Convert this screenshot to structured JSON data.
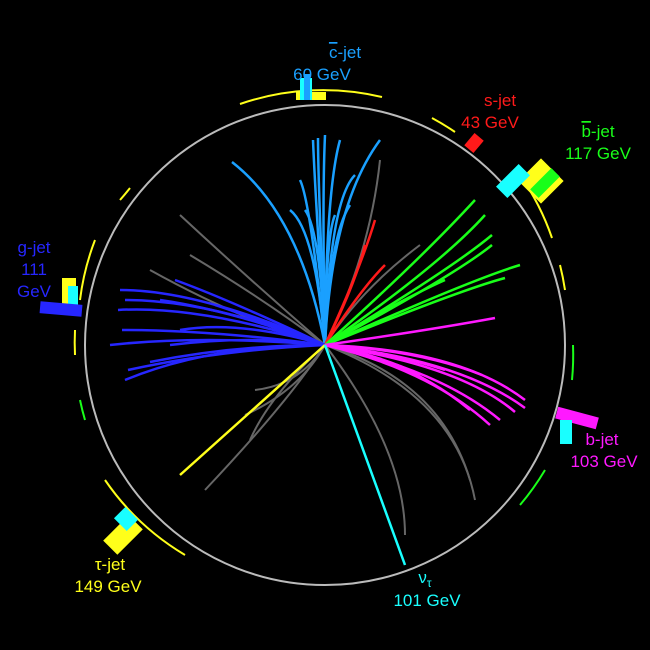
{
  "event": {
    "colors": {
      "charm": "#1aa0ff",
      "strange": "#ff1a1a",
      "bottom_bar": "#19ff19",
      "gluon": "#2626ff",
      "tau": "#ffff1a",
      "bottom": "#ff19ff",
      "neutrino": "#19ffff",
      "background_tracks": "#666666",
      "detector": "#bbbbbb"
    },
    "jets": [
      {
        "id": "cbar",
        "quark_letter": "c",
        "label_suffix": "-jet",
        "energy": "60 GeV",
        "color_key": "charm"
      },
      {
        "id": "s",
        "label": "s-jet",
        "energy": "43 GeV",
        "color_key": "strange"
      },
      {
        "id": "bbar",
        "quark_letter": "b",
        "label_suffix": "-jet",
        "energy": "117 GeV",
        "color_key": "bottom_bar"
      },
      {
        "id": "g",
        "label": "g-jet",
        "energy_value": "111",
        "energy_unit": "GeV",
        "color_key": "gluon"
      },
      {
        "id": "b",
        "label": "b-jet",
        "energy": "103 GeV",
        "color_key": "bottom"
      },
      {
        "id": "tau",
        "label": "τ-jet",
        "energy": "149 GeV",
        "color_key": "tau"
      },
      {
        "id": "nu",
        "label_main": "ν",
        "label_sub": "τ",
        "energy": "101 GeV",
        "color_key": "neutrino"
      }
    ]
  }
}
